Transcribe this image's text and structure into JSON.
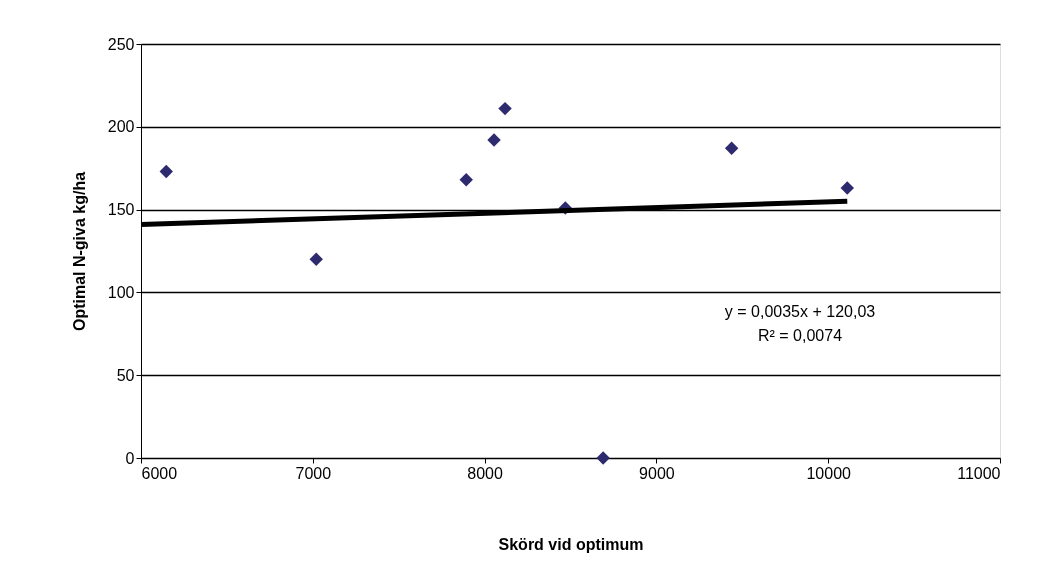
{
  "chart_data": {
    "type": "scatter",
    "xlabel": "Skörd vid optimum",
    "ylabel": "Optimal N-giva kg/ha",
    "xlim": [
      6000,
      11000
    ],
    "xticks": [
      6000,
      7000,
      8000,
      9000,
      10000,
      11000
    ],
    "ylim": [
      0,
      250
    ],
    "yticks": [
      0,
      50,
      100,
      150,
      200,
      250
    ],
    "grid": "y",
    "series": [
      {
        "color": "#2e2a6e",
        "marker": "diamond",
        "x": [
          6147,
          7020,
          7893,
          8055,
          8119,
          8470,
          8690,
          9438,
          10111
        ],
        "values": [
          173,
          120,
          168,
          192,
          211,
          151,
          0,
          187,
          163
        ]
      },
      {
        "type": "line",
        "color": "#000000",
        "marker": "none",
        "line_style": "solid",
        "x": [
          6000,
          10111
        ],
        "values": [
          141,
          155
        ]
      }
    ],
    "annotations": [
      "y = 0,0035x + 120,03",
      "R² = 0,0074"
    ]
  }
}
